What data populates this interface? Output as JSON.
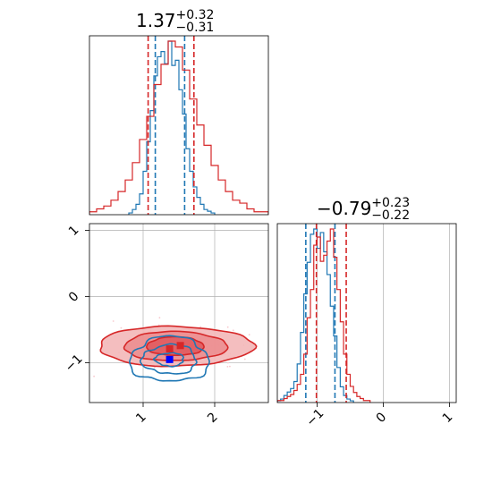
{
  "colors": {
    "red": "#d62728",
    "blue": "#1f77b4",
    "grid": "#b0b0b0",
    "red_fill_outer": "#f3b7b8",
    "red_fill_mid": "#ec8e90",
    "red_fill_inner": "#e05b5e",
    "scatter": "#f7c9ce"
  },
  "chart_data": [
    {
      "type": "histogram",
      "panel": "x-marginal",
      "title": {
        "median": "1.37",
        "plus": "+0.32",
        "minus": "−0.31"
      },
      "x_range": [
        0.25,
        2.75
      ],
      "series": [
        {
          "name": "",
          "color": "#1f77b4",
          "bin_edges": [
            0.8,
            0.85,
            0.9,
            0.95,
            1.0,
            1.05,
            1.1,
            1.15,
            1.2,
            1.25,
            1.3,
            1.35,
            1.4,
            1.45,
            1.5,
            1.55,
            1.6,
            1.65,
            1.7,
            1.75,
            1.8,
            1.85,
            1.9,
            1.95,
            2.0
          ],
          "counts": [
            1,
            3,
            6,
            12,
            25,
            42,
            60,
            80,
            91,
            94,
            87,
            100,
            86,
            89,
            72,
            58,
            38,
            25,
            16,
            10,
            6,
            3,
            2,
            1
          ],
          "quantiles": [
            1.17,
            1.58
          ]
        },
        {
          "name": "",
          "color": "#d62728",
          "bin_edges": [
            0.25,
            0.35,
            0.45,
            0.55,
            0.65,
            0.75,
            0.85,
            0.95,
            1.05,
            1.15,
            1.25,
            1.35,
            1.45,
            1.55,
            1.65,
            1.75,
            1.85,
            1.95,
            2.05,
            2.15,
            2.25,
            2.35,
            2.45,
            2.55,
            2.65,
            2.75
          ],
          "counts": [
            1,
            2,
            3,
            5,
            8,
            12,
            18,
            26,
            34,
            45,
            52,
            60,
            58,
            50,
            40,
            31,
            24,
            17,
            12,
            8,
            5,
            4,
            2,
            1,
            1
          ],
          "quantiles": [
            1.07,
            1.71
          ]
        }
      ]
    },
    {
      "type": "contour",
      "panel": "joint",
      "x_range": [
        0.25,
        2.75
      ],
      "y_range": [
        -1.6,
        1.1
      ],
      "x_ticks": [
        1,
        2
      ],
      "y_ticks": [
        -1,
        0,
        1
      ],
      "series": [
        {
          "name": "",
          "color": "#d62728",
          "center": [
            1.45,
            -0.75
          ],
          "levels_sigma": [
            [
              1.08,
              0.3
            ],
            [
              0.72,
              0.22
            ],
            [
              0.4,
              0.14
            ]
          ],
          "filled": true
        },
        {
          "name": "",
          "color": "#1f77b4",
          "center": [
            1.37,
            -0.95
          ],
          "levels_sigma": [
            [
              0.55,
              0.34
            ],
            [
              0.38,
              0.22
            ],
            [
              0.2,
              0.1
            ]
          ],
          "filled": false
        }
      ],
      "markers": [
        {
          "x": 1.37,
          "y": -0.79,
          "color": "#d62728"
        },
        {
          "x": 1.52,
          "y": -0.74,
          "color": "#d62728"
        },
        {
          "x": 1.37,
          "y": -0.95,
          "color": "#0000ff"
        }
      ]
    },
    {
      "type": "histogram",
      "panel": "y-marginal",
      "title": {
        "median": "−0.79",
        "plus": "+0.23",
        "minus": "−0.22"
      },
      "x_range": [
        -1.6,
        1.1
      ],
      "x_ticks": [
        -1,
        0,
        1
      ],
      "series": [
        {
          "name": "",
          "color": "#1f77b4",
          "bin_edges": [
            -1.6,
            -1.55,
            -1.5,
            -1.45,
            -1.4,
            -1.35,
            -1.3,
            -1.25,
            -1.2,
            -1.15,
            -1.1,
            -1.05,
            -1.0,
            -0.95,
            -0.9,
            -0.85,
            -0.8,
            -0.75,
            -0.7,
            -0.65,
            -0.6,
            -0.55,
            -0.5,
            -0.45
          ],
          "counts": [
            1,
            2,
            4,
            6,
            8,
            12,
            22,
            40,
            62,
            80,
            96,
            99,
            88,
            97,
            86,
            73,
            55,
            38,
            20,
            9,
            4,
            2,
            1
          ],
          "quantiles": [
            -1.17,
            -0.73
          ]
        },
        {
          "name": "",
          "color": "#d62728",
          "bin_edges": [
            -1.6,
            -1.55,
            -1.5,
            -1.45,
            -1.4,
            -1.35,
            -1.3,
            -1.25,
            -1.2,
            -1.15,
            -1.1,
            -1.05,
            -1.0,
            -0.95,
            -0.9,
            -0.85,
            -0.8,
            -0.75,
            -0.7,
            -0.65,
            -0.6,
            -0.55,
            -0.5,
            -0.45,
            -0.4,
            -0.35,
            -0.3,
            -0.25,
            -0.2
          ],
          "counts": [
            1,
            1,
            2,
            3,
            4,
            6,
            9,
            14,
            24,
            42,
            56,
            78,
            82,
            70,
            73,
            80,
            86,
            72,
            56,
            40,
            24,
            14,
            8,
            5,
            3,
            2,
            1,
            1
          ],
          "quantiles": [
            -1.01,
            -0.56
          ]
        }
      ]
    }
  ]
}
